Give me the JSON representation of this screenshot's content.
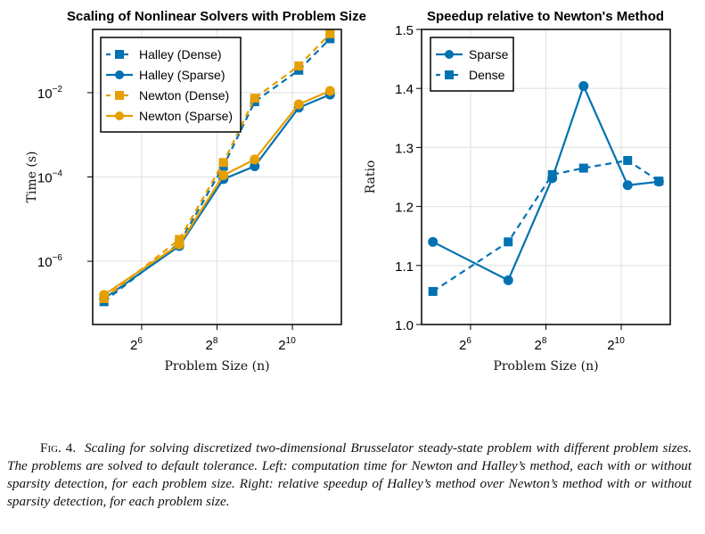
{
  "colors": {
    "blue": "#0072b2",
    "orange": "#e69f00",
    "grid": "#e3e3e3",
    "frame": "#000000"
  },
  "chart_data": [
    {
      "type": "line",
      "title": "Scaling of Nonlinear Solvers with Problem Size",
      "xlabel": "Problem Size (n)",
      "ylabel": "Time (s)",
      "xscale": "log2",
      "yscale": "log10",
      "xlim_log2": [
        4.7,
        11.3
      ],
      "ylim_log10": [
        -7.5,
        -0.5
      ],
      "xticks": [
        {
          "base": "2",
          "exp": "6",
          "value": 64
        },
        {
          "base": "2",
          "exp": "8",
          "value": 256
        },
        {
          "base": "2",
          "exp": "10",
          "value": 1024
        }
      ],
      "yticks": [
        {
          "base": "10",
          "exp": "−2",
          "value": 0.01
        },
        {
          "base": "10",
          "exp": "−4",
          "value": 0.0001
        },
        {
          "base": "10",
          "exp": "−6",
          "value": 1e-06
        }
      ],
      "grid": true,
      "legend_position": "top-left",
      "x": [
        32,
        128,
        288,
        512,
        1152,
        2048
      ],
      "series": [
        {
          "name": "Halley (Dense)",
          "color": "blue",
          "style": "dashed",
          "marker": "square",
          "values": [
            1.1e-07,
            2.7e-06,
            0.00018,
            0.0061,
            0.034,
            0.19
          ]
        },
        {
          "name": "Halley (Sparse)",
          "color": "blue",
          "style": "solid",
          "marker": "circle",
          "values": [
            1.3e-07,
            2.3e-06,
            8.9e-05,
            0.00018,
            0.0044,
            0.009
          ]
        },
        {
          "name": "Newton (Dense)",
          "color": "orange",
          "style": "dashed",
          "marker": "square",
          "values": [
            1.3e-07,
            3.3e-06,
            0.00022,
            0.0074,
            0.043,
            0.25
          ]
        },
        {
          "name": "Newton (Sparse)",
          "color": "orange",
          "style": "solid",
          "marker": "circle",
          "values": [
            1.6e-07,
            2.5e-06,
            0.00011,
            0.00026,
            0.0053,
            0.011
          ]
        }
      ]
    },
    {
      "type": "line",
      "title": "Speedup relative to Newton's Method",
      "xlabel": "Problem Size (n)",
      "ylabel": "Ratio",
      "xscale": "log2",
      "yscale": "linear",
      "xlim_log2": [
        4.7,
        11.3
      ],
      "ylim": [
        1.0,
        1.5
      ],
      "xticks": [
        {
          "base": "2",
          "exp": "6",
          "value": 64
        },
        {
          "base": "2",
          "exp": "8",
          "value": 256
        },
        {
          "base": "2",
          "exp": "10",
          "value": 1024
        }
      ],
      "yticks": [
        {
          "label": "1.0",
          "value": 1.0
        },
        {
          "label": "1.1",
          "value": 1.1
        },
        {
          "label": "1.2",
          "value": 1.2
        },
        {
          "label": "1.3",
          "value": 1.3
        },
        {
          "label": "1.4",
          "value": 1.4
        },
        {
          "label": "1.5",
          "value": 1.5
        }
      ],
      "grid": true,
      "legend_position": "top-left",
      "x": [
        32,
        128,
        288,
        512,
        1152,
        2048
      ],
      "series": [
        {
          "name": "Sparse",
          "color": "blue",
          "style": "solid",
          "marker": "circle",
          "values": [
            1.14,
            1.075,
            1.248,
            1.404,
            1.236,
            1.242
          ]
        },
        {
          "name": "Dense",
          "color": "blue",
          "style": "dashed",
          "marker": "square",
          "values": [
            1.056,
            1.14,
            1.254,
            1.265,
            1.278,
            1.243
          ]
        }
      ]
    }
  ],
  "caption": {
    "label": "Fig. 4.",
    "text": "Scaling for solving discretized two-dimensional Brusselator steady-state problem with different problem sizes. The problems are solved to default tolerance. Left: computation time for Newton and Halley’s method, each with or without sparsity detection, for each problem size. Right: relative speedup of Halley’s method over Newton’s method with or without sparsity detection, for each problem size."
  }
}
